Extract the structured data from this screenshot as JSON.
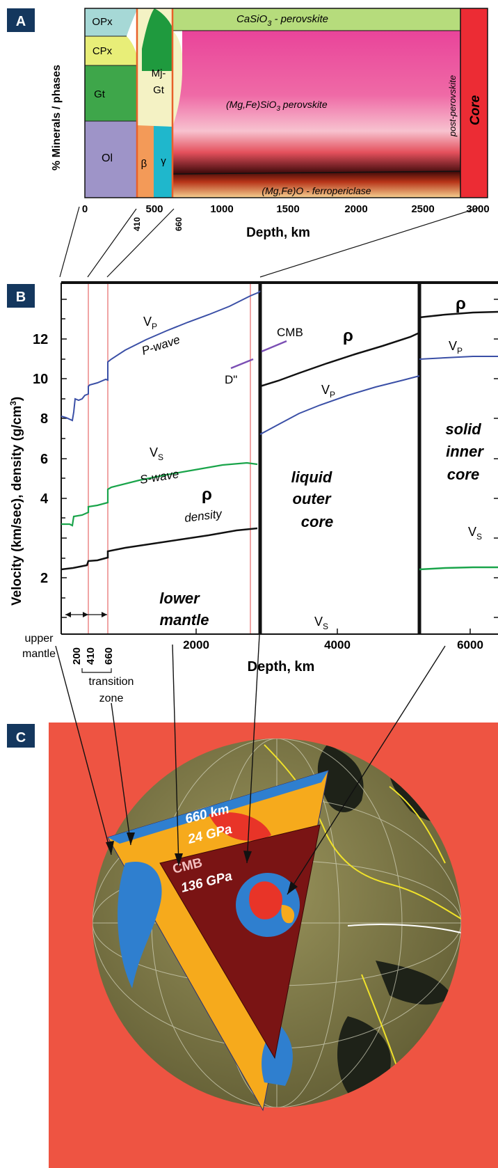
{
  "panel_a": {
    "badge": "A",
    "ylabel": "% Minerals / phases",
    "xlabel": "Depth, km",
    "x_ticks": [
      "0",
      "500",
      "1000",
      "1500",
      "2000",
      "2500",
      "3000"
    ],
    "discontinuity_ticks": [
      "410",
      "660"
    ],
    "phases": {
      "opx": "OPx",
      "cpx": "CPx",
      "gt": "Gt",
      "ol": "Ol",
      "beta": "β",
      "gamma": "γ",
      "mjgt_line1": "Mj-",
      "mjgt_line2": "Gt",
      "pv_pre": "(Mg,Fe)SiO",
      "pv_sub": "3",
      "pv_post": " perovskite",
      "capv_pre": "CaSiO",
      "capv_sub": "3",
      "capv_post": " - perovskite",
      "fp": "(Mg,Fe)O - ferropericlase",
      "ppv": "post-perovskite",
      "core": "Core"
    },
    "colors": {
      "ol": "#9e94c8",
      "gt": "#3ea64a",
      "cpx": "#e8ee78",
      "opx": "#a6d8d6",
      "beta": "#f39a58",
      "gamma": "#1fb7cc",
      "mjgt": "#f4f2c4",
      "capv": "#b6dc7c",
      "pv": "#e9509c",
      "core": "#ec2c34"
    }
  },
  "panel_b": {
    "badge": "B",
    "ylabel": "Velocity (km/sec), density (g/cm",
    "ylabel_sup": "3",
    "ylabel_end": ")",
    "xlabel": "Depth, km",
    "y_ticks": [
      "2",
      "4",
      "6",
      "8",
      "10",
      "12"
    ],
    "x_ticks": [
      "2000",
      "4000",
      "6000"
    ],
    "depth_ticks": [
      "200",
      "410",
      "660"
    ],
    "labels": {
      "vp_main": "V",
      "vp_sub": "P",
      "pwave": "P-wave",
      "vs_main": "V",
      "vs_sub": "S",
      "swave": "S-wave",
      "rho": "ρ",
      "density": "density",
      "cmb": "CMB",
      "dpp": "D\"",
      "lower1": "lower",
      "lower2": "mantle",
      "outer1": "liquid",
      "outer2": "outer",
      "outer3": "core",
      "inner1": "solid",
      "inner2": "inner",
      "inner3": "core",
      "upper1": "upper",
      "upper2": "mantle",
      "tz1": "transition",
      "tz2": "zone"
    },
    "colors": {
      "vp": "#3a4fa6",
      "vs": "#19a44a",
      "rho": "#111111",
      "dpp": "#7b4fb4",
      "disc": "#e04848"
    }
  },
  "panel_c": {
    "badge": "C",
    "label_660": "660 km",
    "label_24": "24 GPa",
    "label_cmb": "CMB",
    "label_136": "136 GPa",
    "colors": {
      "background": "#ee5442",
      "globe": "#7e7a46",
      "land": "#1e2218",
      "outer_core": "#7a1414",
      "blue": "#2f7fcf",
      "yellow": "#f6aa1c",
      "red": "#e83428"
    }
  },
  "chart_data": {
    "type": "line",
    "xlabel": "Depth, km",
    "ylabel": "Velocity (km/sec), density (g/cm3)",
    "xlim": [
      0,
      6371
    ],
    "ylim": [
      0,
      14
    ],
    "x": [
      0,
      200,
      410,
      660,
      1000,
      1500,
      2000,
      2500,
      2890,
      3500,
      4000,
      4500,
      5150,
      5500,
      6000,
      6371
    ],
    "series": [
      {
        "name": "VP",
        "values": [
          8.0,
          8.3,
          9.1,
          10.75,
          11.4,
          12.2,
          12.8,
          13.4,
          13.7,
          8.5,
          9.1,
          9.6,
          10.3,
          11.1,
          11.2,
          11.3
        ]
      },
      {
        "name": "VS",
        "values": [
          4.2,
          4.5,
          5.0,
          5.9,
          6.3,
          6.7,
          7.0,
          7.2,
          7.3,
          0,
          0,
          0,
          0,
          3.5,
          3.6,
          3.7
        ]
      },
      {
        "name": "ρ",
        "values": [
          3.3,
          3.4,
          3.7,
          4.3,
          4.5,
          4.8,
          5.1,
          5.4,
          5.5,
          10.2,
          11.0,
          11.6,
          12.2,
          12.8,
          13.0,
          13.1
        ]
      }
    ]
  }
}
